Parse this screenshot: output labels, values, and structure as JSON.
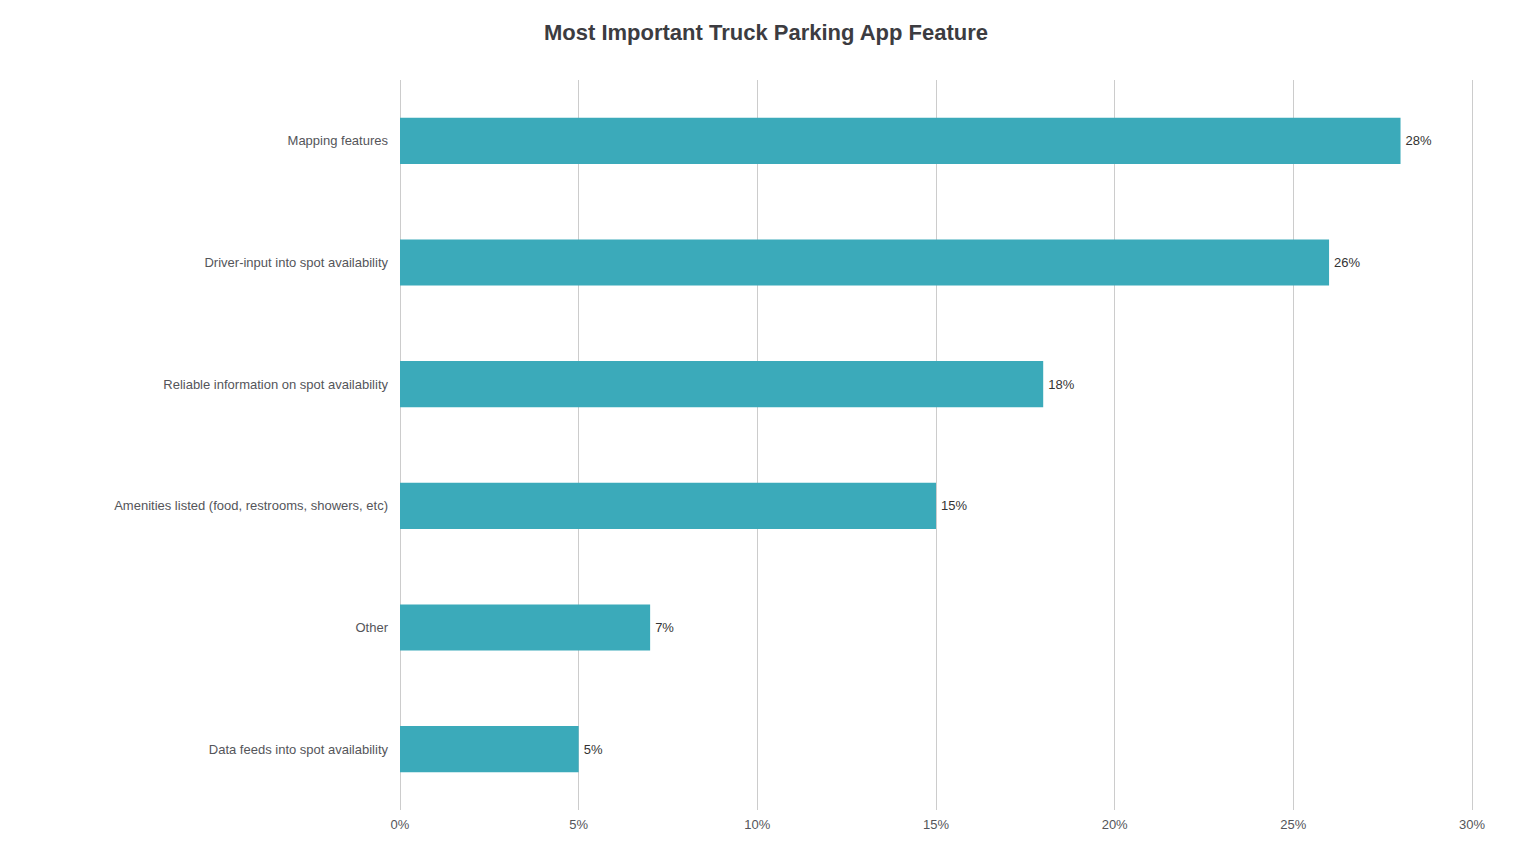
{
  "chart_data": {
    "type": "bar",
    "orientation": "horizontal",
    "title": "Most Important Truck Parking App Feature",
    "categories": [
      "Data feeds into spot availability",
      "Other",
      "Amenities listed (food, restrooms, showers, etc)",
      "Reliable information on spot availability",
      "Driver-input into spot availability",
      "Mapping features"
    ],
    "values": [
      5,
      7,
      15,
      18,
      26,
      28
    ],
    "value_labels": [
      "5%",
      "7%",
      "15%",
      "18%",
      "26%",
      "28%"
    ],
    "data_labels": true,
    "color": "#3BAABA",
    "xlim": [
      0,
      30
    ],
    "xticks": [
      {
        "value": 0,
        "label": "0%"
      },
      {
        "value": 5,
        "label": "5%"
      },
      {
        "value": 10,
        "label": "10%"
      },
      {
        "value": 15,
        "label": "15%"
      },
      {
        "value": 20,
        "label": "20%"
      },
      {
        "value": 25,
        "label": "25%"
      },
      {
        "value": 30,
        "label": "30%"
      }
    ],
    "grid": true
  }
}
